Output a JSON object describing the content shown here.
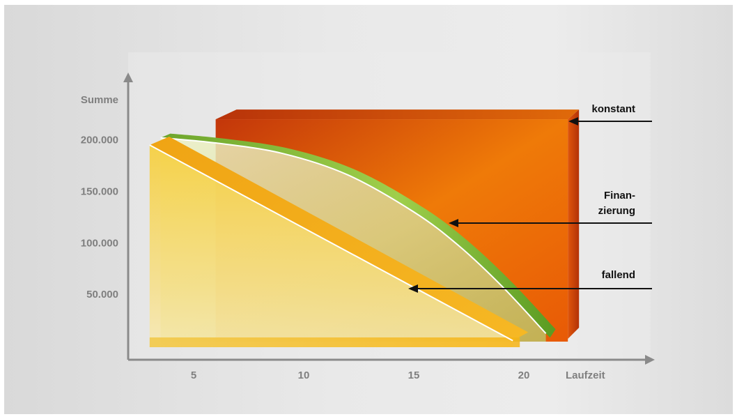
{
  "chart_data": {
    "type": "area",
    "xlabel": "Laufzeit",
    "ylabel": "Summe",
    "x_ticks": [
      5,
      10,
      15,
      20
    ],
    "y_ticks": [
      {
        "value": 50000,
        "label": "50.000"
      },
      {
        "value": 100000,
        "label": "100.000"
      },
      {
        "value": 150000,
        "label": "150.000"
      },
      {
        "value": 200000,
        "label": "200.000"
      }
    ],
    "xlim": [
      1.5,
      23
    ],
    "ylim": [
      0,
      255000
    ],
    "grid": false,
    "series": [
      {
        "name": "konstant",
        "color": "#e35a0b",
        "points": [
          [
            6,
            220000
          ],
          [
            22,
            220000
          ]
        ]
      },
      {
        "name": "Finan-\nzierung",
        "color": "#7cae2e",
        "points": [
          [
            3.5,
            202000
          ],
          [
            6,
            197000
          ],
          [
            9,
            187000
          ],
          [
            12,
            166000
          ],
          [
            15,
            130000
          ],
          [
            17,
            98000
          ],
          [
            19,
            58000
          ],
          [
            21,
            12000
          ]
        ]
      },
      {
        "name": "fallend",
        "color": "#f5b418",
        "points": [
          [
            3,
            195000
          ],
          [
            19.5,
            5000
          ]
        ]
      }
    ],
    "legend": "right, arrows pointing to series"
  },
  "labels": {
    "konstant": "konstant",
    "finanzierung_line1": "Finan-",
    "finanzierung_line2": "zierung",
    "fallend": "fallend"
  }
}
